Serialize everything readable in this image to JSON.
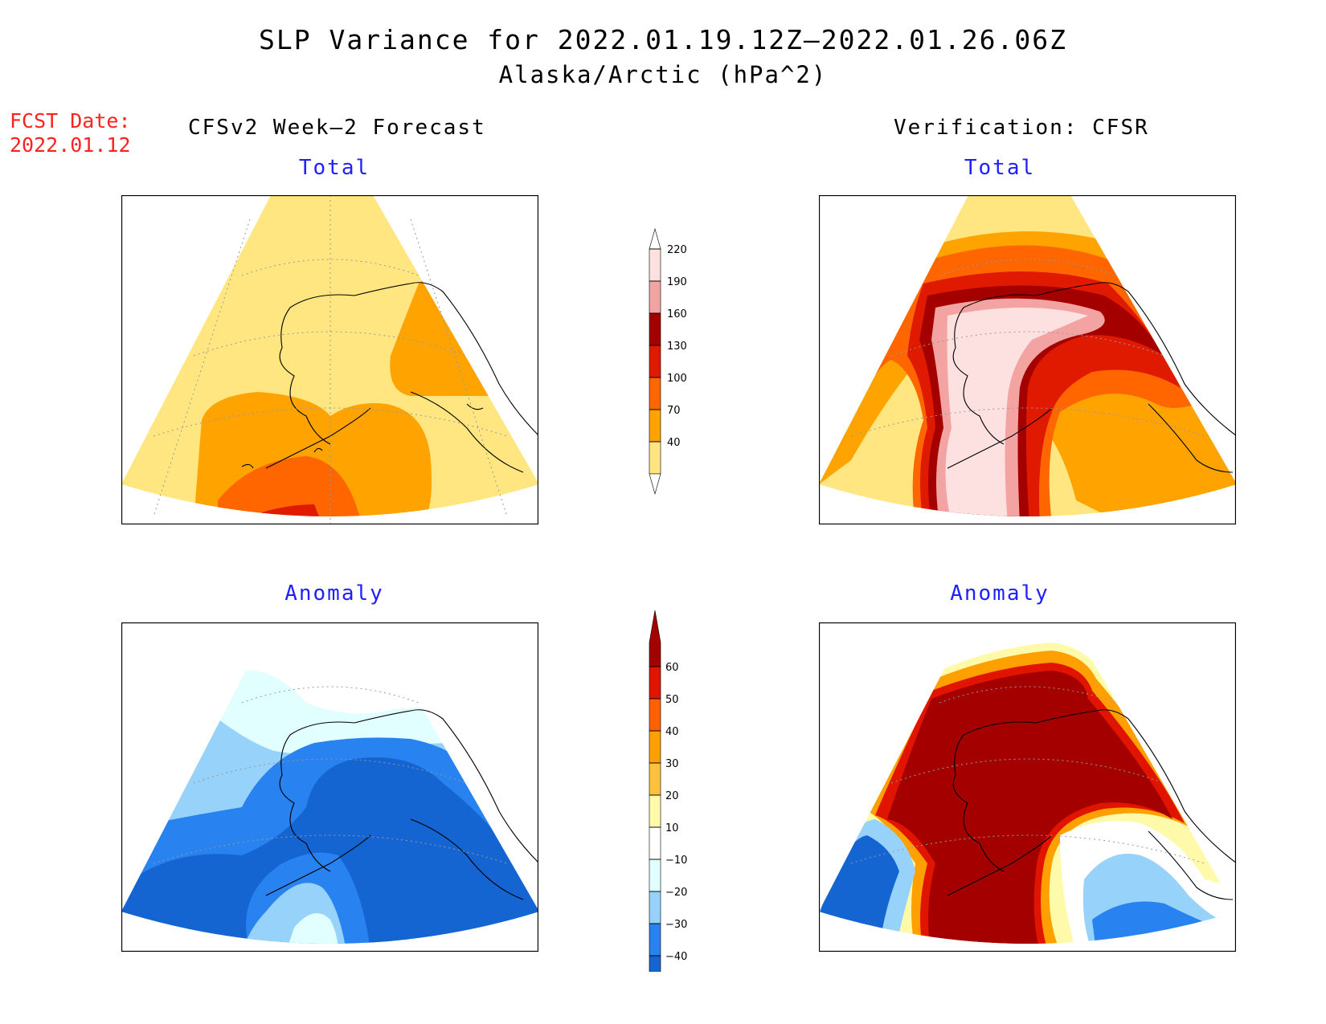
{
  "title": {
    "line1": "SLP Variance for 2022.01.19.12Z—2022.01.26.06Z",
    "line2": "Alaska/Arctic (hPa^2)"
  },
  "forecast_date": {
    "label": "FCST Date:",
    "value": "2022.01.12"
  },
  "columns": {
    "left": "CFSv2 Week—2 Forecast",
    "right": "Verification: CFSR"
  },
  "panel_titles": {
    "top_left": "Total",
    "top_right": "Total",
    "bottom_left": "Anomaly",
    "bottom_right": "Anomaly"
  },
  "colors": {
    "total": [
      "#ffe680",
      "#ffa300",
      "#ff6600",
      "#e01a00",
      "#a50000",
      "#f4a3a3",
      "#fde1e1"
    ],
    "anomaly": [
      "#1464d2",
      "#2882f0",
      "#96d2fa",
      "#e1ffff",
      "#ffffff",
      "#fffaaa",
      "#ffc03c",
      "#ffa000",
      "#ff6000",
      "#e11400",
      "#a50000"
    ],
    "land_outline": "#000000"
  },
  "chart_data": [
    {
      "type": "heatmap",
      "name": "total-colorbar",
      "units": "hPa^2",
      "levels": [
        40,
        70,
        100,
        130,
        160,
        190,
        220
      ],
      "tick_labels": [
        "40",
        "70",
        "100",
        "130",
        "160",
        "190",
        "220"
      ]
    },
    {
      "type": "heatmap",
      "name": "anomaly-colorbar",
      "units": "hPa^2",
      "levels": [
        -40,
        -30,
        -20,
        -10,
        10,
        20,
        30,
        40,
        50,
        60
      ],
      "tick_labels": [
        "−40",
        "−30",
        "−20",
        "−10",
        "10",
        "20",
        "30",
        "40",
        "50",
        "60"
      ]
    }
  ]
}
